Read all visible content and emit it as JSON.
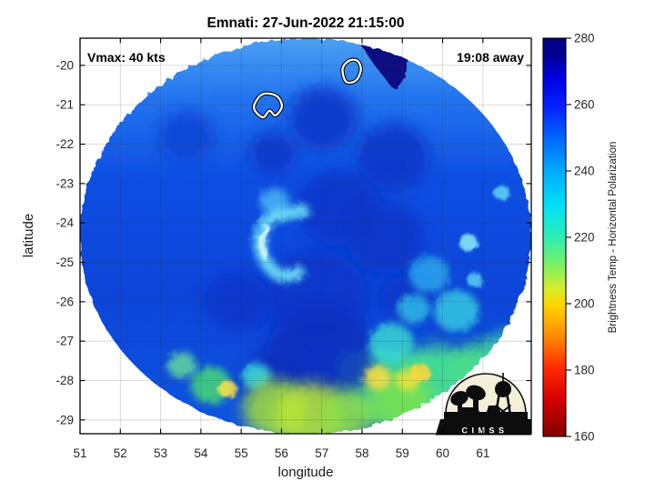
{
  "figure": {
    "title": "Emnati: 27-Jun-2022 21:15:00",
    "vmax_label": "Vmax: 40 kts",
    "eta_label": "19:08 away",
    "logo_text": "CIMSS"
  },
  "chart_data": {
    "type": "heatmap",
    "title": "Emnati: 27-Jun-2022 21:15:00",
    "subtitle": "",
    "xlabel": "longitude",
    "ylabel": "latitude",
    "xlim": [
      51,
      62.2
    ],
    "ylim": [
      -29.35,
      -19.31
    ],
    "xticks": [
      51,
      52,
      53,
      54,
      55,
      56,
      57,
      58,
      59,
      60,
      61
    ],
    "yticks": [
      -20,
      -21,
      -22,
      -23,
      -24,
      -25,
      -26,
      -27,
      -28,
      -29
    ],
    "grid": true,
    "grid_color": "rgba(50,50,50,0.22)",
    "annotations": [
      {
        "text": "Vmax: 40 kts",
        "position": "top-left"
      },
      {
        "text": "19:08 away",
        "position": "top-right"
      }
    ],
    "colorbar": {
      "label": "Brightness Temp - Horizontal Polarization",
      "min": 160,
      "max": 280,
      "ticks": [
        280,
        260,
        240,
        220,
        200,
        180,
        160
      ],
      "colormap": "jet",
      "stops_top_to_bottom": [
        [
          "0%",
          "#00007f"
        ],
        [
          "4%",
          "#000092"
        ],
        [
          "10%",
          "#0000e0"
        ],
        [
          "17%",
          "#0520ff"
        ],
        [
          "25%",
          "#0066ff"
        ],
        [
          "33%",
          "#00a8ff"
        ],
        [
          "42%",
          "#00e0f8"
        ],
        [
          "50%",
          "#2ceeb4"
        ],
        [
          "57%",
          "#7cf060"
        ],
        [
          "63%",
          "#d8ec2c"
        ],
        [
          "67%",
          "#ffd600"
        ],
        [
          "75%",
          "#ff8800"
        ],
        [
          "83%",
          "#ff2800"
        ],
        [
          "91%",
          "#d40000"
        ],
        [
          "100%",
          "#7f0000"
        ]
      ]
    },
    "swath": {
      "center_lon": 56.6,
      "center_lat": -24.34,
      "rx_deg": 5.6,
      "ry_deg": 5.02,
      "gradient_top_to_bottom": [
        [
          "0%",
          "#4aa0f2"
        ],
        [
          "15%",
          "#2374ee"
        ],
        [
          "35%",
          "#0e4fe2"
        ],
        [
          "65%",
          "#0a44d8"
        ],
        [
          "100%",
          "#1156e0"
        ]
      ]
    },
    "features": {
      "dark_region_polygon": {
        "color": "#0a1182",
        "points": [
          [
            57.98,
            -19.31
          ],
          [
            59.08,
            -19.31
          ],
          [
            59.17,
            -19.79
          ],
          [
            58.88,
            -20.58
          ],
          [
            58.56,
            -20.32
          ],
          [
            58.13,
            -19.72
          ]
        ]
      },
      "green_zone_polygon": {
        "color": "#38cfa6",
        "points": [
          [
            57.5,
            -27.34
          ],
          [
            58.49,
            -27.22
          ],
          [
            59.62,
            -27.38
          ],
          [
            60.98,
            -27.29
          ],
          [
            62.17,
            -27.57
          ],
          [
            62.17,
            -29.12
          ],
          [
            58.49,
            -29.12
          ],
          [
            57.5,
            -28.26
          ]
        ]
      },
      "blobs": [
        {
          "lon": 57.03,
          "lat": -21.34,
          "r_deg": 0.86,
          "color": "#0836c8"
        },
        {
          "lon": 55.79,
          "lat": -22.22,
          "r_deg": 0.59,
          "color": "#0836c8"
        },
        {
          "lon": 58.77,
          "lat": -22.31,
          "r_deg": 0.9,
          "color": "#0836c8"
        },
        {
          "lon": 57.41,
          "lat": -23.6,
          "r_deg": 1.02,
          "color": "#0836c8"
        },
        {
          "lon": 58.58,
          "lat": -24.38,
          "r_deg": 0.95,
          "color": "#0836c8"
        },
        {
          "lon": 56.87,
          "lat": -25.84,
          "r_deg": 1.24,
          "color": "#0836c8"
        },
        {
          "lon": 54.93,
          "lat": -26.0,
          "r_deg": 0.79,
          "color": "#0836c8"
        },
        {
          "lon": 59.13,
          "lat": -25.95,
          "r_deg": 0.68,
          "color": "#0836c8"
        },
        {
          "lon": 56.96,
          "lat": -27.38,
          "r_deg": 1.35,
          "color": "#0a2fbe"
        },
        {
          "lon": 55.92,
          "lat": -28.03,
          "r_deg": 0.9,
          "color": "#0a2fbe"
        },
        {
          "lon": 53.64,
          "lat": -21.8,
          "r_deg": 0.68,
          "color": "#0c44d4"
        },
        {
          "lon": 55.83,
          "lat": -23.46,
          "r_deg": 0.36,
          "color": "#49b6f2"
        },
        {
          "lon": 59.67,
          "lat": -25.31,
          "r_deg": 0.5,
          "color": "#2aa6ec"
        },
        {
          "lon": 60.64,
          "lat": -24.5,
          "r_deg": 0.23,
          "color": "#8ceef8"
        },
        {
          "lon": 61.47,
          "lat": -23.23,
          "r_deg": 0.2,
          "color": "#5fd8f4"
        },
        {
          "lon": 60.8,
          "lat": -25.45,
          "r_deg": 0.2,
          "color": "#55d0f0"
        },
        {
          "lon": 60.34,
          "lat": -26.23,
          "r_deg": 0.56,
          "color": "#35c8e2"
        },
        {
          "lon": 59.28,
          "lat": -26.18,
          "r_deg": 0.41,
          "color": "#2fb9e6"
        },
        {
          "lon": 58.72,
          "lat": -27.06,
          "r_deg": 0.56,
          "color": "#3bd8d2"
        },
        {
          "lon": 59.85,
          "lat": -28.03,
          "r_deg": 1.02,
          "color": "#46dc92"
        },
        {
          "lon": 61.02,
          "lat": -27.75,
          "r_deg": 0.79,
          "color": "#4cdc88"
        },
        {
          "lon": 61.65,
          "lat": -27.34,
          "r_deg": 0.63,
          "color": "#3ed4b4"
        },
        {
          "lon": 58.95,
          "lat": -28.54,
          "r_deg": 0.79,
          "color": "#7ce24e"
        },
        {
          "lon": 58.38,
          "lat": -27.92,
          "r_deg": 0.34,
          "color": "#ffe03c"
        },
        {
          "lon": 59.13,
          "lat": -27.99,
          "r_deg": 0.29,
          "color": "#f0e438"
        },
        {
          "lon": 59.44,
          "lat": -27.8,
          "r_deg": 0.25,
          "color": "#ffd83a"
        },
        {
          "lon": 54.25,
          "lat": -28.12,
          "r_deg": 0.5,
          "color": "#45d878"
        },
        {
          "lon": 54.66,
          "lat": -28.22,
          "r_deg": 0.23,
          "color": "#ffe24a"
        },
        {
          "lon": 55.38,
          "lat": -27.89,
          "r_deg": 0.36,
          "color": "#3adcdc"
        },
        {
          "lon": 55.83,
          "lat": -28.72,
          "r_deg": 0.79,
          "color": "#a4e23c"
        },
        {
          "lon": 56.73,
          "lat": -28.91,
          "r_deg": 0.9,
          "color": "#bce636"
        },
        {
          "lon": 57.64,
          "lat": -28.86,
          "r_deg": 0.68,
          "color": "#8ee04a"
        },
        {
          "lon": 53.53,
          "lat": -27.61,
          "r_deg": 0.36,
          "color": "#62d89e"
        }
      ],
      "spiral_arcs": [
        {
          "color": "#6fe4f6",
          "width_deg": 0.32,
          "points": [
            [
              56.53,
              -23.69
            ],
            [
              55.74,
              -23.88
            ],
            [
              55.47,
              -24.38
            ],
            [
              55.58,
              -24.94
            ],
            [
              55.97,
              -25.33
            ],
            [
              56.42,
              -25.26
            ]
          ]
        },
        {
          "color": "#d8f9fc",
          "width_deg": 0.16,
          "points": [
            [
              55.65,
              -24.15
            ],
            [
              55.51,
              -24.48
            ],
            [
              55.6,
              -24.85
            ]
          ]
        }
      ],
      "white_contours": [
        {
          "points": [
            [
              55.36,
              -20.92
            ],
            [
              55.56,
              -20.72
            ],
            [
              55.88,
              -20.78
            ],
            [
              56.01,
              -21.04
            ],
            [
              55.85,
              -21.27
            ],
            [
              55.7,
              -21.15
            ],
            [
              55.54,
              -21.32
            ],
            [
              55.33,
              -21.13
            ]
          ]
        },
        {
          "points": [
            [
              57.57,
              -20.37
            ],
            [
              57.52,
              -20.07
            ],
            [
              57.68,
              -19.88
            ],
            [
              57.88,
              -19.88
            ],
            [
              57.97,
              -20.09
            ],
            [
              57.88,
              -20.35
            ],
            [
              57.7,
              -20.44
            ]
          ]
        }
      ]
    }
  }
}
